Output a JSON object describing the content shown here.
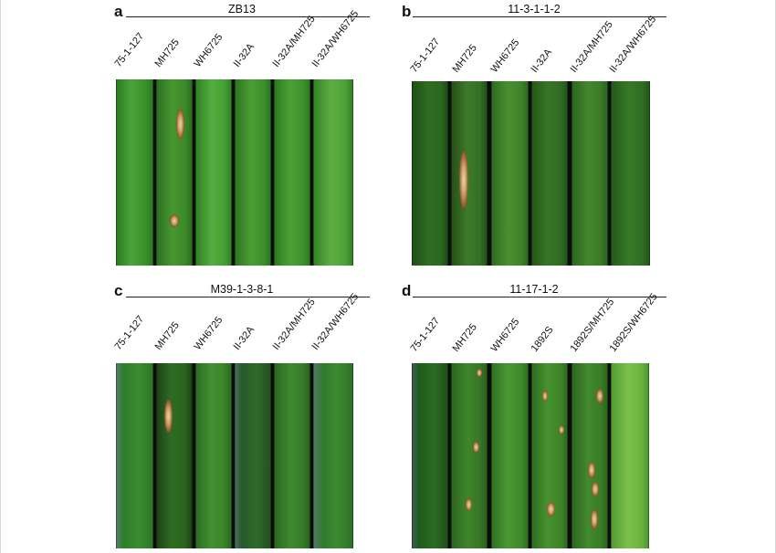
{
  "panels": [
    {
      "letter": "a",
      "title": "ZB13",
      "columns": [
        "75-1-127",
        "MH725",
        "WH6725",
        "II-32A",
        "II-32A/MH725",
        "II-32A/WH6725"
      ]
    },
    {
      "letter": "b",
      "title": "11-3-1-1-2",
      "columns": [
        "75-1-127",
        "MH725",
        "WH6725",
        "II-32A",
        "II-32A/MH725",
        "II-32A/WH6725"
      ]
    },
    {
      "letter": "c",
      "title": "M39-1-3-8-1",
      "columns": [
        "75-1-127",
        "MH725",
        "WH6725",
        "II-32A",
        "II-32A/MH725",
        "II-32A/WH6725"
      ]
    },
    {
      "letter": "d",
      "title": "11-17-1-2",
      "columns": [
        "75-1-127",
        "MH725",
        "WH6725",
        "1892S",
        "1892S/MH725",
        "1892S/WH6725"
      ]
    }
  ],
  "colors": {
    "leaf_bright": "#3f9a2a",
    "leaf_mid": "#2f7f22",
    "leaf_dark": "#245f1c",
    "lesion_brown": "#8a4f25",
    "lesion_center": "#e8d6b0"
  }
}
